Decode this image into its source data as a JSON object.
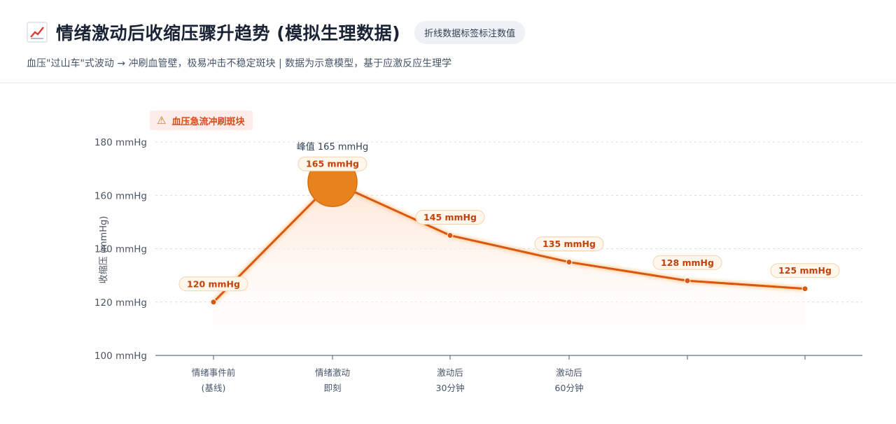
{
  "header": {
    "icon": "trend-chart-icon",
    "title": "情绪激动后收缩压骤升趋势 (模拟生理数据)",
    "badge": "折线数据标签标注数值",
    "subtitle": "血压\"过山车\"式波动 → 冲刷血管壁，极易冲击不稳定斑块 | 数据为示意模型，基于应激反应生理学"
  },
  "warning": {
    "icon": "warning-icon",
    "text": "血压急流冲刷斑块"
  },
  "chart_data": {
    "type": "line",
    "ylabel": "收缩压 (mmHg)",
    "ylim": [
      100,
      180
    ],
    "yticks": [
      "100 mmHg",
      "120 mmHg",
      "140 mmHg",
      "160 mmHg",
      "180 mmHg"
    ],
    "ytick_values": [
      100,
      120,
      140,
      160,
      180
    ],
    "grid": true,
    "categories": [
      [
        "情绪事件前",
        "(基线)"
      ],
      [
        "情绪激动",
        "即刻"
      ],
      [
        "激动后",
        "30分钟"
      ],
      [
        "激动后",
        "60分钟"
      ],
      [
        "",
        ""
      ],
      [
        "",
        ""
      ]
    ],
    "values": [
      120,
      165,
      145,
      135,
      128,
      125
    ],
    "data_labels": [
      "120 mmHg",
      "165 mmHg",
      "145 mmHg",
      "135 mmHg",
      "128 mmHg",
      "125 mmHg"
    ],
    "peak_annotation": "峰值 165 mmHg",
    "colors": {
      "line": "#d9580f",
      "peak_marker": "#e8821c",
      "area_top": "#fde4d3",
      "label_bg": "#fff7ec",
      "label_border": "#f3d3ae"
    }
  }
}
